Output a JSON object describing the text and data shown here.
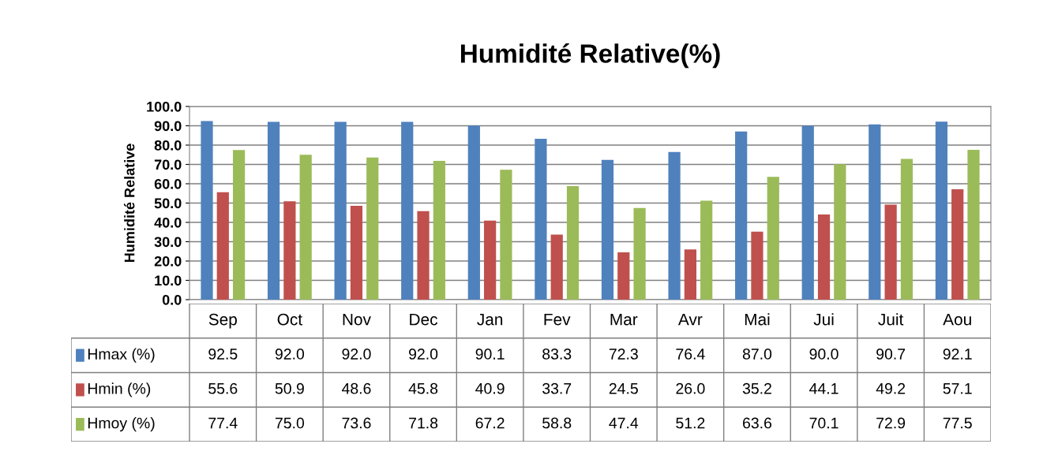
{
  "chart_data": {
    "type": "bar",
    "title": "Humidité Relative(%)",
    "ylabel": "Humidité Relative",
    "categories": [
      "Sep",
      "Oct",
      "Nov",
      "Dec",
      "Jan",
      "Fev",
      "Mar",
      "Avr",
      "Mai",
      "Jui",
      "Juit",
      "Aou"
    ],
    "series": [
      {
        "name": "Hmax (%)",
        "color": "#4f81bd",
        "values": [
          92.5,
          92.0,
          92.0,
          92.0,
          90.1,
          83.3,
          72.3,
          76.4,
          87.0,
          90.0,
          90.7,
          92.1
        ],
        "value_labels": [
          "92.5",
          "92.0",
          "92.0",
          "92.0",
          "90.1",
          "83.3",
          "72.3",
          "76.4",
          "87.0",
          "90.0",
          "90.7",
          "92.1"
        ]
      },
      {
        "name": "Hmin (%)",
        "color": "#c0504d",
        "values": [
          55.6,
          50.9,
          48.6,
          45.8,
          40.9,
          33.7,
          24.5,
          26.0,
          35.2,
          44.1,
          49.2,
          57.1
        ],
        "value_labels": [
          "55.6",
          "50.9",
          "48.6",
          "45.8",
          "40.9",
          "33.7",
          "24.5",
          "26.0",
          "35.2",
          "44.1",
          "49.2",
          "57.1"
        ]
      },
      {
        "name": "Hmoy (%)",
        "color": "#9bbb59",
        "values": [
          77.4,
          75.0,
          73.6,
          71.8,
          67.2,
          58.8,
          47.4,
          51.2,
          63.6,
          70.1,
          72.9,
          77.5
        ],
        "value_labels": [
          "77.4",
          "75.0",
          "73.6",
          "71.8",
          "67.2",
          "58.8",
          "47.4",
          "51.2",
          "63.6",
          "70.1",
          "72.9",
          "77.5"
        ]
      }
    ],
    "ylim": [
      0,
      100
    ],
    "yticks": [
      {
        "value": 0,
        "label": "0.0"
      },
      {
        "value": 10,
        "label": "10.0"
      },
      {
        "value": 20,
        "label": "20.0"
      },
      {
        "value": 30,
        "label": "30.0"
      },
      {
        "value": 40,
        "label": "40.0"
      },
      {
        "value": 50,
        "label": "50.0"
      },
      {
        "value": 60,
        "label": "60.0"
      },
      {
        "value": 70,
        "label": "70.0"
      },
      {
        "value": 80,
        "label": "80.0"
      },
      {
        "value": 90,
        "label": "90.0"
      },
      {
        "value": 100,
        "label": "100.0"
      }
    ],
    "grid": "y",
    "legend": "bottom"
  }
}
